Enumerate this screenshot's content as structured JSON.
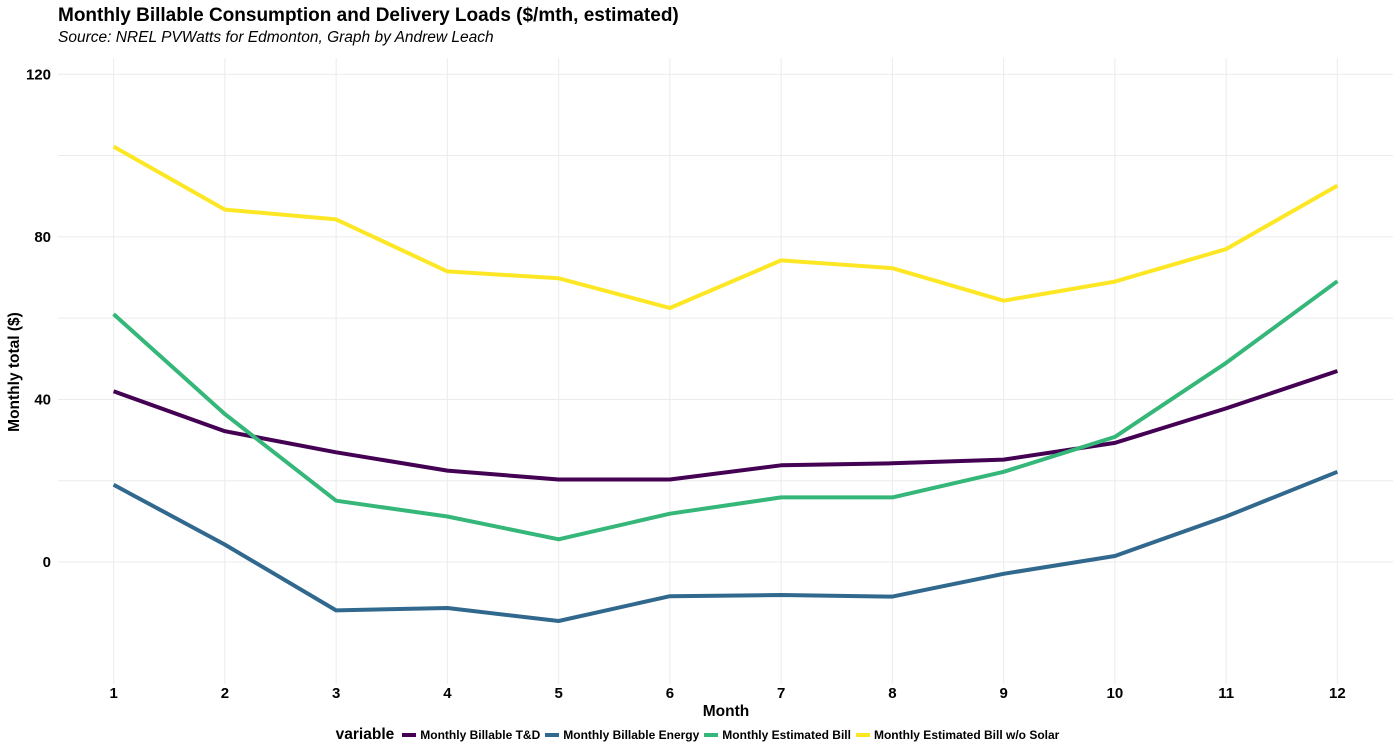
{
  "chart_data": {
    "type": "line",
    "title": "Monthly Billable Consumption and Delivery Loads ($/mth, estimated)",
    "subtitle": "Source: NREL PVWatts for Edmonton, Graph by Andrew Leach",
    "xlabel": "Month",
    "ylabel": "Monthly total ($)",
    "x": [
      1,
      2,
      3,
      4,
      5,
      6,
      7,
      8,
      9,
      10,
      11,
      12
    ],
    "xlim": [
      0.5,
      12.5
    ],
    "ylim": [
      -30,
      124
    ],
    "yticks": [
      0,
      40,
      80,
      120
    ],
    "grid": true,
    "legend_title": "variable",
    "legend_position": "bottom",
    "series": [
      {
        "name": "Monthly Billable T&D",
        "color": "#440154",
        "values": [
          42,
          32.2,
          27,
          22.5,
          20.3,
          20.3,
          23.8,
          24.3,
          25.2,
          29.3,
          37.8,
          47
        ]
      },
      {
        "name": "Monthly Billable Energy",
        "color": "#31688E",
        "values": [
          19,
          4.3,
          -11.9,
          -11.3,
          -14.5,
          -8.4,
          -8.1,
          -8.5,
          -2.9,
          1.5,
          11.2,
          22.2
        ]
      },
      {
        "name": "Monthly Estimated Bill",
        "color": "#35B779",
        "values": [
          61,
          36.4,
          15.1,
          11.2,
          5.6,
          11.9,
          15.9,
          15.9,
          22.2,
          30.8,
          49,
          69.1
        ]
      },
      {
        "name": "Monthly Estimated Bill w/o Solar",
        "color": "#FDE725",
        "values": [
          102.2,
          86.7,
          84.3,
          71.5,
          69.8,
          62.5,
          74.2,
          72.3,
          64.3,
          69,
          77,
          92.6
        ]
      }
    ]
  }
}
